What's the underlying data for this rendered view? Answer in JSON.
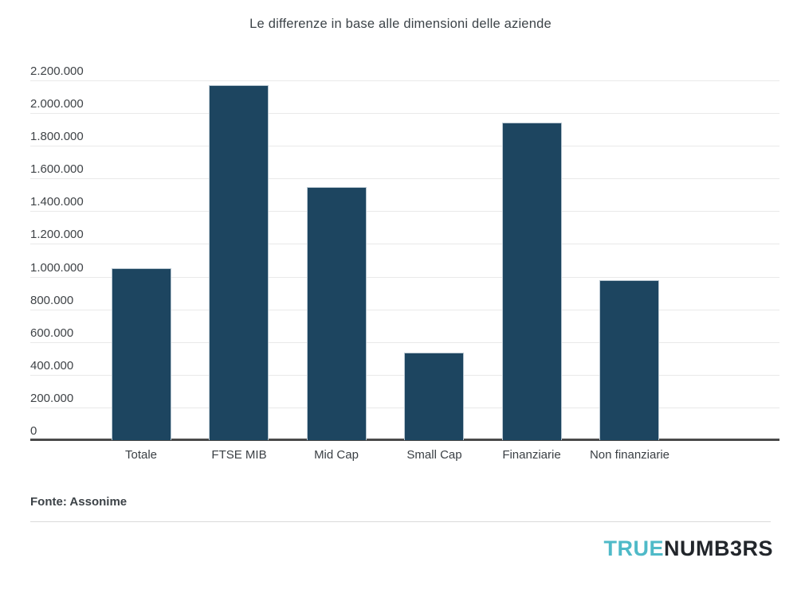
{
  "page": {
    "background": "#ffffff"
  },
  "chart_data": {
    "type": "bar",
    "title": "Le differenze in base alle dimensioni delle aziende",
    "categories": [
      "Totale",
      "FTSE MIB",
      "Mid Cap",
      "Small Cap",
      "Finanziarie",
      "Non finanziarie"
    ],
    "values": [
      1050000,
      2170000,
      1550000,
      535000,
      1940000,
      980000
    ],
    "ylim": [
      0,
      2200000
    ],
    "y_ticks": [
      {
        "value": 0,
        "label": "0"
      },
      {
        "value": 200000,
        "label": "200.000"
      },
      {
        "value": 400000,
        "label": "400.000"
      },
      {
        "value": 600000,
        "label": "600.000"
      },
      {
        "value": 800000,
        "label": "800.000"
      },
      {
        "value": 1000000,
        "label": "1.000.000"
      },
      {
        "value": 1200000,
        "label": "1.200.000"
      },
      {
        "value": 1400000,
        "label": "1.400.000"
      },
      {
        "value": 1600000,
        "label": "1.600.000"
      },
      {
        "value": 1800000,
        "label": "1.800.000"
      },
      {
        "value": 2000000,
        "label": "2.000.000"
      },
      {
        "value": 2200000,
        "label": "2.200.000"
      }
    ],
    "grid": "horizontal",
    "legend": "none",
    "xlabel": "",
    "ylabel": "",
    "bar_color": "#1d4560",
    "bar_border_color": "#b9c7d1",
    "gridline_color": "#e9e9e9",
    "axisline_color": "#4a4a4a"
  },
  "source": {
    "label": "Fonte: Assonime"
  },
  "logo": {
    "part1": "TRUE",
    "part2": "NUMB3RS",
    "part1_color": "#4fbac8",
    "part2_color": "#22262b"
  }
}
